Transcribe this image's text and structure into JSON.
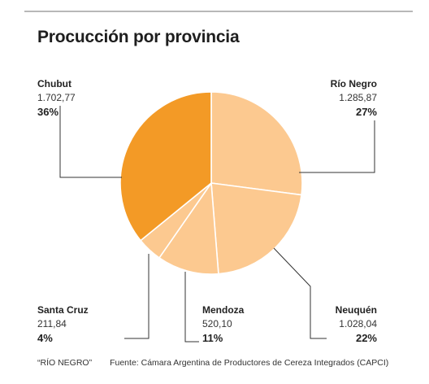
{
  "title": "Procucción por provincia",
  "footer": {
    "credit": "“RÍO NEGRO”",
    "source": "Fuente: Cámara Argentina de Productores de Cereza Integrados (CAPCI)"
  },
  "colors": {
    "chubut": "#f39a26",
    "others": "#fcc990",
    "leader": "#333333",
    "rule": "#b8b8b8"
  },
  "chart_data": {
    "type": "pie",
    "title": "Procucción por provincia",
    "slices": [
      {
        "label": "Río Negro",
        "value": 1285.87,
        "value_text": "1.285,87",
        "percent": 27,
        "percent_text": "27%"
      },
      {
        "label": "Neuquén",
        "value": 1028.04,
        "value_text": "1.028,04",
        "percent": 22,
        "percent_text": "22%"
      },
      {
        "label": "Mendoza",
        "value": 520.1,
        "value_text": "520,10",
        "percent": 11,
        "percent_text": "11%"
      },
      {
        "label": "Santa Cruz",
        "value": 211.84,
        "value_text": "211,84",
        "percent": 4,
        "percent_text": "4%"
      },
      {
        "label": "Chubut",
        "value": 1702.77,
        "value_text": "1.702,77",
        "percent": 36,
        "percent_text": "36%"
      }
    ]
  }
}
